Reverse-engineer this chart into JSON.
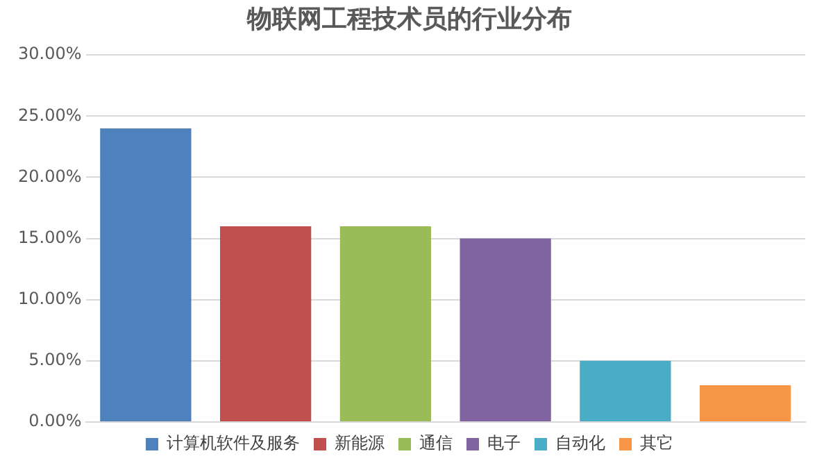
{
  "chart_data": {
    "type": "bar",
    "title": "物联网工程技术员的行业分布",
    "categories": [
      null,
      null,
      null,
      null,
      null,
      null
    ],
    "series": [
      {
        "name": "计算机软件及服务",
        "color": "#4f81bd",
        "values": [
          24,
          null,
          null,
          null,
          null,
          null
        ]
      },
      {
        "name": "新能源",
        "color": "#c0504d",
        "values": [
          null,
          16,
          null,
          null,
          null,
          null
        ]
      },
      {
        "name": "通信",
        "color": "#9bbb59",
        "values": [
          null,
          null,
          16,
          null,
          null,
          null
        ]
      },
      {
        "name": "电子",
        "color": "#8064a2",
        "values": [
          null,
          null,
          null,
          15,
          null,
          null
        ]
      },
      {
        "name": "自动化",
        "color": "#4bacc6",
        "values": [
          null,
          null,
          null,
          null,
          5,
          null
        ]
      },
      {
        "name": "其它",
        "color": "#f79646",
        "values": [
          null,
          null,
          null,
          null,
          null,
          3
        ]
      }
    ],
    "ylim": [
      0,
      30
    ],
    "yticks": [
      {
        "value": 0,
        "label": "0.00%"
      },
      {
        "value": 5,
        "label": "5.00%"
      },
      {
        "value": 10,
        "label": "10.00%"
      },
      {
        "value": 15,
        "label": "15.00%"
      },
      {
        "value": 20,
        "label": "20.00%"
      },
      {
        "value": 25,
        "label": "25.00%"
      },
      {
        "value": 30,
        "label": "30.00%"
      }
    ],
    "grid": "y",
    "legend": "bottom",
    "tick_labels": "y"
  }
}
